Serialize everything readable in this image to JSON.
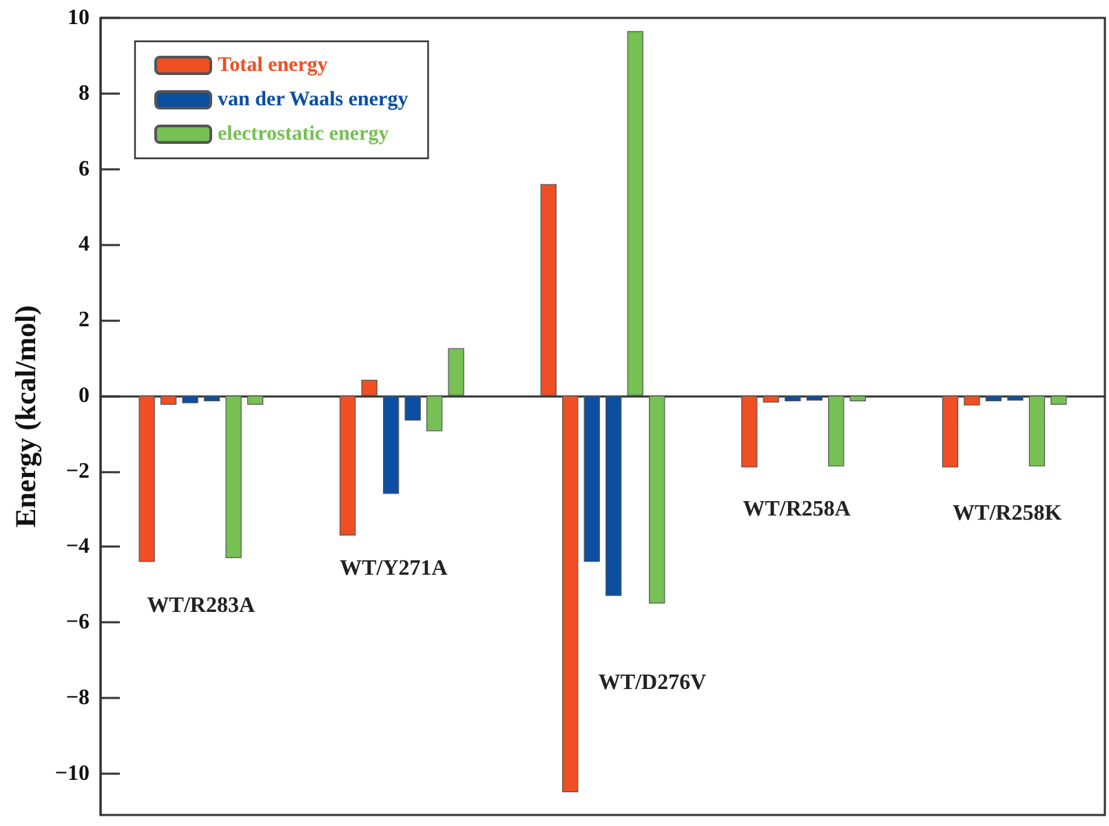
{
  "chart_data": {
    "type": "bar",
    "ylabel": "Energy (kcal/mol)",
    "categories": [
      null,
      null,
      null,
      null,
      null
    ],
    "series": [
      {
        "name": "Total energy",
        "color": "#f04e23",
        "values": [
          -4.4,
          -3.7,
          5.6,
          -1.9,
          -1.9
        ]
      },
      {
        "color": "#f04e23",
        "values": [
          -0.24,
          0.42,
          -10.5,
          -0.18,
          -0.26
        ]
      },
      {
        "name": "van der Waals energy",
        "color": "#0b4ea2",
        "values": [
          -0.2,
          -2.6,
          -4.4,
          -0.15,
          -0.15
        ]
      },
      {
        "color": "#0b4ea2",
        "values": [
          -0.15,
          -0.66,
          -5.3,
          -0.13,
          -0.13
        ]
      },
      {
        "name": "electrostatic energy",
        "color": "#76c054",
        "values": [
          -4.3,
          -0.94,
          9.65,
          -1.87,
          -1.87
        ]
      },
      {
        "color": "#76c054",
        "values": [
          -0.24,
          1.26,
          -5.5,
          -0.15,
          -0.24
        ]
      }
    ],
    "ylim": [
      -11.1,
      10
    ],
    "yticks": [
      -10,
      -8,
      -6,
      -4,
      -2,
      0,
      2,
      4,
      6,
      8,
      10
    ],
    "annotations": [
      "WT/R283A",
      "WT/Y271A",
      "WT/D276V",
      "WT/R258A",
      "WT/R258K"
    ],
    "legend": "top left"
  }
}
